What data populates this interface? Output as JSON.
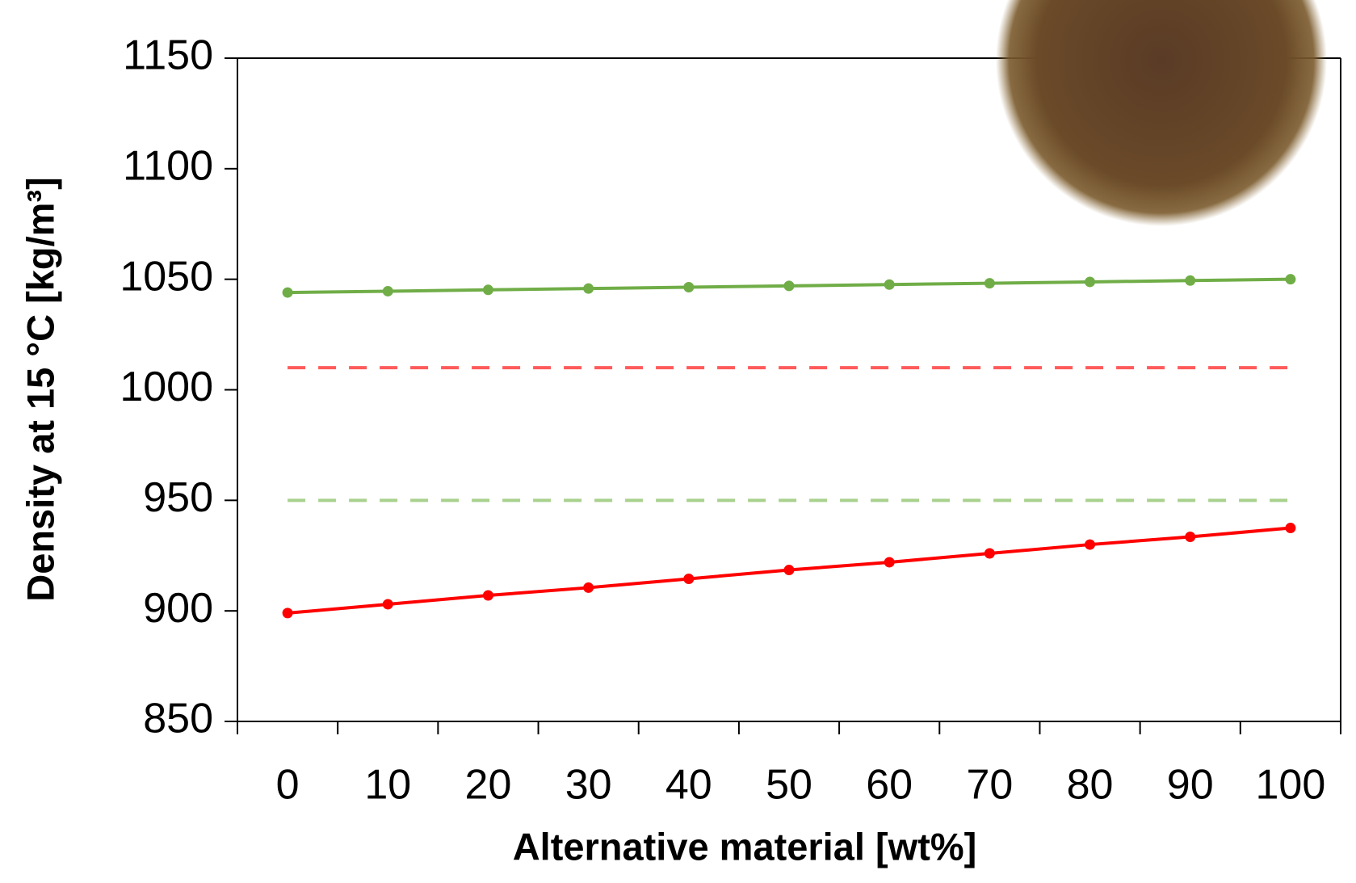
{
  "chart_data": {
    "type": "line",
    "x_label": "Alternative material [wt%]",
    "y_label": "Density at 15 °C [kg/m³]",
    "categories": [
      "0",
      "10",
      "20",
      "30",
      "40",
      "50",
      "60",
      "70",
      "80",
      "90",
      "100"
    ],
    "series": [
      {
        "color": "#70ad47",
        "values": [
          1044,
          1044.6,
          1045.2,
          1045.8,
          1046.4,
          1047,
          1047.6,
          1048.2,
          1048.8,
          1049.4,
          1050
        ]
      },
      {
        "color": "#ff0000",
        "values": [
          899,
          903,
          907,
          910.5,
          914.5,
          918.5,
          922,
          926,
          930,
          933.5,
          937.5
        ]
      }
    ],
    "reference_lines": [
      {
        "value": 1010,
        "color": "#ff5b5b",
        "dashed": true
      },
      {
        "value": 950,
        "color": "#a9d18e",
        "dashed": true
      }
    ],
    "ylim": [
      850,
      1150
    ],
    "yticks": [
      850,
      900,
      950,
      1000,
      1050,
      1100,
      1150
    ],
    "grid": false
  }
}
